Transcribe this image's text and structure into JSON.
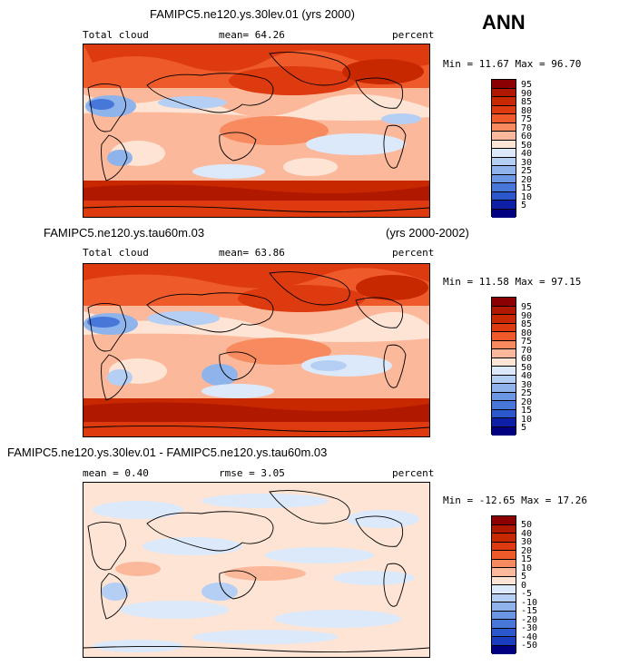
{
  "season": "ANN",
  "panels": [
    {
      "title": "FAMIPC5.ne120.ys.30lev.01 (yrs 2000)",
      "title_right": "",
      "left_label": "Total cloud",
      "mid_label": "mean=  64.26",
      "right_label": "percent",
      "minmax": "Min =  11.67 Max =  96.70",
      "colorbar_labels": [
        "95",
        "90",
        "85",
        "80",
        "75",
        "70",
        "60",
        "50",
        "40",
        "30",
        "25",
        "20",
        "15",
        "10",
        "5"
      ],
      "colors": [
        "#8b0000",
        "#b01800",
        "#c82800",
        "#de3a10",
        "#ee5a2a",
        "#f78a5e",
        "#fcb89a",
        "#fde4d4",
        "#dce9fb",
        "#b5cff4",
        "#8fb4ec",
        "#6a96e3",
        "#4677d9",
        "#2a58cc",
        "#1a3cbe",
        "#0d1fa6",
        "#000080"
      ]
    },
    {
      "title": "FAMIPC5.ne120.ys.tau60m.03",
      "title_right": "(yrs 2000-2002)",
      "left_label": "Total cloud",
      "mid_label": "mean=  63.86",
      "right_label": "percent",
      "minmax": "Min =  11.58 Max =  97.15",
      "colorbar_labels": [
        "95",
        "90",
        "85",
        "80",
        "75",
        "70",
        "60",
        "50",
        "40",
        "30",
        "25",
        "20",
        "15",
        "10",
        "5"
      ],
      "colors": [
        "#8b0000",
        "#b01800",
        "#c82800",
        "#de3a10",
        "#ee5a2a",
        "#f78a5e",
        "#fcb89a",
        "#fde4d4",
        "#dce9fb",
        "#b5cff4",
        "#8fb4ec",
        "#6a96e3",
        "#4677d9",
        "#2a58cc",
        "#1a3cbe",
        "#0d1fa6",
        "#000080"
      ]
    },
    {
      "title": "FAMIPC5.ne120.ys.30lev.01 - FAMIPC5.ne120.ys.tau60m.03",
      "title_right": "",
      "left_label": "mean =   0.40",
      "mid_label": "rmse =   3.05",
      "right_label": "percent",
      "minmax": "Min = -12.65 Max =  17.26",
      "colorbar_labels": [
        "50",
        "40",
        "30",
        "20",
        "15",
        "10",
        "5",
        "0",
        "-5",
        "-10",
        "-15",
        "-20",
        "-30",
        "-40",
        "-50"
      ],
      "colors": [
        "#8b0000",
        "#b01800",
        "#c82800",
        "#de3a10",
        "#ee5a2a",
        "#f78a5e",
        "#fcb89a",
        "#fde4d4",
        "#dce9fb",
        "#b5cff4",
        "#8fb4ec",
        "#6a96e3",
        "#4677d9",
        "#2a58cc",
        "#1a3cbe",
        "#000080"
      ]
    }
  ]
}
